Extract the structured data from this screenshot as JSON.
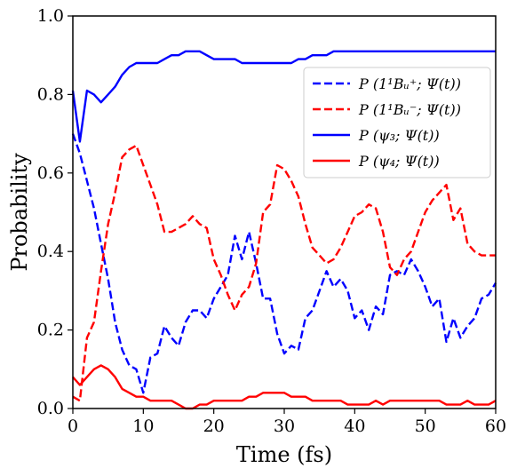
{
  "chart_data": {
    "type": "line",
    "title": "",
    "xlabel": "Time (fs)",
    "ylabel": "Probability",
    "xlim": [
      0,
      60
    ],
    "ylim": [
      0.0,
      1.0
    ],
    "xticks": [
      0,
      10,
      20,
      30,
      40,
      50,
      60
    ],
    "xtick_labels": [
      "0",
      "10",
      "20",
      "30",
      "40",
      "50",
      "60"
    ],
    "yticks": [
      0.0,
      0.2,
      0.4,
      0.6,
      0.8,
      1.0
    ],
    "ytick_labels": [
      "0.0",
      "0.2",
      "0.4",
      "0.6",
      "0.8",
      "1.0"
    ],
    "grid": false,
    "legend_position": "upper-right",
    "series": [
      {
        "name": "P (1¹Bᵤ⁺; Ψ(t))",
        "color": "#0000ff",
        "dash": "dashed",
        "x": [
          0,
          1,
          2,
          3,
          4,
          5,
          6,
          7,
          8,
          9,
          10,
          11,
          12,
          13,
          14,
          15,
          16,
          17,
          18,
          19,
          20,
          21,
          22,
          23,
          24,
          25,
          26,
          27,
          28,
          29,
          30,
          31,
          32,
          33,
          34,
          35,
          36,
          37,
          38,
          39,
          40,
          41,
          42,
          43,
          44,
          45,
          46,
          47,
          48,
          49,
          50,
          51,
          52,
          53,
          54,
          55,
          56,
          57,
          58,
          59,
          60
        ],
        "values": [
          0.7,
          0.65,
          0.58,
          0.51,
          0.42,
          0.33,
          0.22,
          0.15,
          0.11,
          0.1,
          0.04,
          0.13,
          0.14,
          0.21,
          0.18,
          0.16,
          0.22,
          0.25,
          0.25,
          0.23,
          0.28,
          0.31,
          0.34,
          0.44,
          0.38,
          0.45,
          0.37,
          0.28,
          0.28,
          0.19,
          0.14,
          0.16,
          0.15,
          0.23,
          0.25,
          0.3,
          0.35,
          0.31,
          0.33,
          0.3,
          0.23,
          0.25,
          0.2,
          0.26,
          0.24,
          0.34,
          0.35,
          0.34,
          0.38,
          0.35,
          0.31,
          0.26,
          0.28,
          0.17,
          0.23,
          0.18,
          0.21,
          0.23,
          0.28,
          0.29,
          0.32
        ]
      },
      {
        "name": "P (1¹Bᵤ⁻; Ψ(t))",
        "color": "#ff0000",
        "dash": "dashed",
        "x": [
          0,
          1,
          2,
          3,
          4,
          5,
          6,
          7,
          8,
          9,
          10,
          11,
          12,
          13,
          14,
          15,
          16,
          17,
          18,
          19,
          20,
          21,
          22,
          23,
          24,
          25,
          26,
          27,
          28,
          29,
          30,
          31,
          32,
          33,
          34,
          35,
          36,
          37,
          38,
          39,
          40,
          41,
          42,
          43,
          44,
          45,
          46,
          47,
          48,
          49,
          50,
          51,
          52,
          53,
          54,
          55,
          56,
          57,
          58,
          59,
          60
        ],
        "values": [
          0.03,
          0.02,
          0.18,
          0.22,
          0.35,
          0.47,
          0.55,
          0.64,
          0.66,
          0.67,
          0.62,
          0.57,
          0.52,
          0.45,
          0.45,
          0.46,
          0.47,
          0.49,
          0.47,
          0.46,
          0.38,
          0.34,
          0.29,
          0.25,
          0.29,
          0.31,
          0.37,
          0.5,
          0.52,
          0.62,
          0.61,
          0.58,
          0.54,
          0.47,
          0.41,
          0.39,
          0.37,
          0.38,
          0.41,
          0.45,
          0.49,
          0.5,
          0.52,
          0.51,
          0.45,
          0.36,
          0.34,
          0.38,
          0.4,
          0.45,
          0.5,
          0.53,
          0.55,
          0.57,
          0.48,
          0.51,
          0.42,
          0.4,
          0.39,
          0.39,
          0.39
        ]
      },
      {
        "name": "P (ψ₃; Ψ(t))",
        "color": "#0000ff",
        "dash": "solid",
        "x": [
          0,
          1,
          2,
          3,
          4,
          5,
          6,
          7,
          8,
          9,
          10,
          11,
          12,
          13,
          14,
          15,
          16,
          17,
          18,
          19,
          20,
          21,
          22,
          23,
          24,
          25,
          26,
          27,
          28,
          29,
          30,
          31,
          32,
          33,
          34,
          35,
          36,
          37,
          38,
          39,
          40,
          41,
          42,
          43,
          44,
          45,
          46,
          47,
          48,
          49,
          50,
          51,
          52,
          53,
          54,
          55,
          56,
          57,
          58,
          59,
          60
        ],
        "values": [
          0.81,
          0.68,
          0.81,
          0.8,
          0.78,
          0.8,
          0.82,
          0.85,
          0.87,
          0.88,
          0.88,
          0.88,
          0.88,
          0.89,
          0.9,
          0.9,
          0.91,
          0.91,
          0.91,
          0.9,
          0.89,
          0.89,
          0.89,
          0.89,
          0.88,
          0.88,
          0.88,
          0.88,
          0.88,
          0.88,
          0.88,
          0.88,
          0.89,
          0.89,
          0.9,
          0.9,
          0.9,
          0.91,
          0.91,
          0.91,
          0.91,
          0.91,
          0.91,
          0.91,
          0.91,
          0.91,
          0.91,
          0.91,
          0.91,
          0.91,
          0.91,
          0.91,
          0.91,
          0.91,
          0.91,
          0.91,
          0.91,
          0.91,
          0.91,
          0.91,
          0.91
        ]
      },
      {
        "name": "P (ψ₄; Ψ(t))",
        "color": "#ff0000",
        "dash": "solid",
        "x": [
          0,
          1,
          2,
          3,
          4,
          5,
          6,
          7,
          8,
          9,
          10,
          11,
          12,
          13,
          14,
          15,
          16,
          17,
          18,
          19,
          20,
          21,
          22,
          23,
          24,
          25,
          26,
          27,
          28,
          29,
          30,
          31,
          32,
          33,
          34,
          35,
          36,
          37,
          38,
          39,
          40,
          41,
          42,
          43,
          44,
          45,
          46,
          47,
          48,
          49,
          50,
          51,
          52,
          53,
          54,
          55,
          56,
          57,
          58,
          59,
          60
        ],
        "values": [
          0.08,
          0.06,
          0.08,
          0.1,
          0.11,
          0.1,
          0.08,
          0.05,
          0.04,
          0.03,
          0.03,
          0.02,
          0.02,
          0.02,
          0.02,
          0.01,
          0.0,
          0.0,
          0.01,
          0.01,
          0.02,
          0.02,
          0.02,
          0.02,
          0.02,
          0.03,
          0.03,
          0.04,
          0.04,
          0.04,
          0.04,
          0.03,
          0.03,
          0.03,
          0.02,
          0.02,
          0.02,
          0.02,
          0.02,
          0.01,
          0.01,
          0.01,
          0.01,
          0.02,
          0.01,
          0.02,
          0.02,
          0.02,
          0.02,
          0.02,
          0.02,
          0.02,
          0.02,
          0.01,
          0.01,
          0.01,
          0.02,
          0.01,
          0.01,
          0.01,
          0.02
        ]
      }
    ]
  }
}
